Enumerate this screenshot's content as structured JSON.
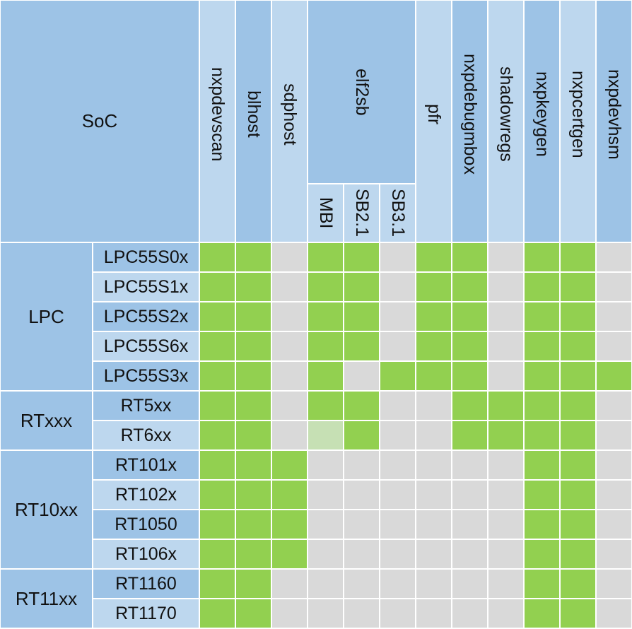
{
  "table": {
    "corner_label": "SoC",
    "tools": [
      {
        "label": "nxpdevscan"
      },
      {
        "label": "blhost"
      },
      {
        "label": "sdphost"
      },
      {
        "label": "elf2sb",
        "sub": [
          "MBI",
          "SB2.1",
          "SB3.1"
        ]
      },
      {
        "label": "pfr"
      },
      {
        "label": "nxpdebugmbox"
      },
      {
        "label": "shadowregs"
      },
      {
        "label": "nxpkeygen"
      },
      {
        "label": "nxpcertgen"
      },
      {
        "label": "nxpdevhsm"
      }
    ],
    "groups": [
      {
        "label": "LPC",
        "rows": [
          {
            "label": "LPC55S0x",
            "support": [
              1,
              1,
              0,
              1,
              1,
              0,
              1,
              1,
              0,
              1,
              1,
              0
            ]
          },
          {
            "label": "LPC55S1x",
            "support": [
              1,
              1,
              0,
              1,
              1,
              0,
              1,
              1,
              0,
              1,
              1,
              0
            ]
          },
          {
            "label": "LPC55S2x",
            "support": [
              1,
              1,
              0,
              1,
              1,
              0,
              1,
              1,
              0,
              1,
              1,
              0
            ]
          },
          {
            "label": "LPC55S6x",
            "support": [
              1,
              1,
              0,
              1,
              1,
              0,
              1,
              1,
              0,
              1,
              1,
              0
            ]
          },
          {
            "label": "LPC55S3x",
            "support": [
              1,
              1,
              0,
              1,
              0,
              1,
              1,
              1,
              0,
              1,
              1,
              1
            ]
          }
        ]
      },
      {
        "label": "RTxxx",
        "rows": [
          {
            "label": "RT5xx",
            "support": [
              1,
              1,
              0,
              1,
              1,
              0,
              0,
              1,
              1,
              1,
              1,
              0
            ]
          },
          {
            "label": "RT6xx",
            "support": [
              1,
              1,
              0,
              2,
              1,
              0,
              0,
              1,
              1,
              1,
              1,
              0
            ]
          }
        ]
      },
      {
        "label": "RT10xx",
        "rows": [
          {
            "label": "RT101x",
            "support": [
              1,
              1,
              1,
              0,
              0,
              0,
              0,
              0,
              0,
              1,
              1,
              0
            ]
          },
          {
            "label": "RT102x",
            "support": [
              1,
              1,
              1,
              0,
              0,
              0,
              0,
              0,
              0,
              1,
              1,
              0
            ]
          },
          {
            "label": "RT1050",
            "support": [
              1,
              1,
              1,
              0,
              0,
              0,
              0,
              0,
              0,
              1,
              1,
              0
            ]
          },
          {
            "label": "RT106x",
            "support": [
              1,
              1,
              1,
              0,
              0,
              0,
              0,
              0,
              0,
              1,
              1,
              0
            ]
          }
        ]
      },
      {
        "label": "RT11xx",
        "rows": [
          {
            "label": "RT1160",
            "support": [
              1,
              1,
              0,
              0,
              0,
              0,
              0,
              0,
              0,
              1,
              1,
              0
            ]
          },
          {
            "label": "RT1170",
            "support": [
              1,
              1,
              0,
              0,
              0,
              0,
              0,
              0,
              0,
              1,
              1,
              0
            ]
          }
        ]
      }
    ]
  },
  "colors": {
    "supported": "#92d050",
    "partial": "#c6e0b4",
    "unsupported": "#d9d9d9",
    "header_dark": "#9dc3e6",
    "header_light": "#bdd7ee",
    "border": "#ffffff"
  }
}
